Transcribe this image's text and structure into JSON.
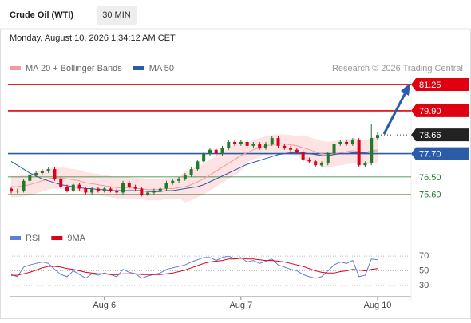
{
  "chart_data": {
    "type": "candlestick",
    "title": "Crude Oil (WTI)",
    "interval": "30 MIN",
    "subtitle": "Monday, August 10, 2026 1:34:12 AM CET",
    "source": "Research © 2026 Trading Central",
    "categories": [
      null,
      null,
      null,
      null,
      null,
      null,
      null,
      null,
      null,
      null,
      null,
      null,
      null,
      null,
      null,
      "Aug 6",
      null,
      null,
      null,
      null,
      null,
      null,
      null,
      null,
      null,
      null,
      null,
      null,
      null,
      null,
      null,
      null,
      null,
      null,
      null,
      null,
      null,
      "Aug 7",
      null,
      null,
      null,
      null,
      null,
      null,
      null,
      null,
      null,
      null,
      null,
      null,
      null,
      null,
      null,
      null,
      null,
      null,
      null,
      null,
      null,
      "Aug 10"
    ],
    "open": [
      75.9,
      75.75,
      75.8,
      76.3,
      76.6,
      76.7,
      76.8,
      76.9,
      76.4,
      76.0,
      75.8,
      76.1,
      75.9,
      75.7,
      75.9,
      75.8,
      75.9,
      75.8,
      75.7,
      76.2,
      76.0,
      75.9,
      75.6,
      75.7,
      75.8,
      75.9,
      76.2,
      76.3,
      76.4,
      76.6,
      76.9,
      77.3,
      77.7,
      77.9,
      77.7,
      78.0,
      78.3,
      78.2,
      78.3,
      78.1,
      78.2,
      78.0,
      78.2,
      78.5,
      78.1,
      78.0,
      77.9,
      77.8,
      77.4,
      77.3,
      77.1,
      77.2,
      77.7,
      78.2,
      78.3,
      78.2,
      78.4,
      77.1,
      77.2,
      78.5
    ],
    "high": [
      76.0,
      75.9,
      76.4,
      76.7,
      76.8,
      76.9,
      77.0,
      77.0,
      76.5,
      76.1,
      76.2,
      76.2,
      76.0,
      76.0,
      76.0,
      76.0,
      76.0,
      75.9,
      76.3,
      76.3,
      76.1,
      76.0,
      75.8,
      75.9,
      76.0,
      76.3,
      76.4,
      76.5,
      76.7,
      77.0,
      77.4,
      77.8,
      78.0,
      78.0,
      78.1,
      78.4,
      78.4,
      78.4,
      78.4,
      78.3,
      78.3,
      78.3,
      78.6,
      78.6,
      78.2,
      78.1,
      78.0,
      77.9,
      77.5,
      77.4,
      77.3,
      77.8,
      78.3,
      78.4,
      78.4,
      78.5,
      78.5,
      77.3,
      79.2,
      78.8
    ],
    "low": [
      75.65,
      75.65,
      75.7,
      76.2,
      76.5,
      76.6,
      76.7,
      76.3,
      75.9,
      75.7,
      75.7,
      75.8,
      75.6,
      75.6,
      75.7,
      75.7,
      75.7,
      75.6,
      75.6,
      75.9,
      75.8,
      75.5,
      75.5,
      75.6,
      75.7,
      75.8,
      76.1,
      76.2,
      76.3,
      76.5,
      76.8,
      77.2,
      77.6,
      77.6,
      77.6,
      77.9,
      78.1,
      78.1,
      78.0,
      78.0,
      77.9,
      77.9,
      78.1,
      78.0,
      77.9,
      77.8,
      77.7,
      77.3,
      77.2,
      77.0,
      77.0,
      77.1,
      77.6,
      78.1,
      78.1,
      78.1,
      77.0,
      77.0,
      77.1,
      78.4
    ],
    "close": [
      75.75,
      75.8,
      76.3,
      76.6,
      76.7,
      76.8,
      76.9,
      76.4,
      76.0,
      75.8,
      76.1,
      75.9,
      75.7,
      75.9,
      75.8,
      75.9,
      75.8,
      75.7,
      76.2,
      76.0,
      75.9,
      75.6,
      75.7,
      75.8,
      75.9,
      76.2,
      76.3,
      76.4,
      76.6,
      76.9,
      77.3,
      77.7,
      77.9,
      77.7,
      78.0,
      78.3,
      78.2,
      78.3,
      78.1,
      78.2,
      78.0,
      78.2,
      78.5,
      78.1,
      78.0,
      77.9,
      77.8,
      77.4,
      77.3,
      77.1,
      77.2,
      77.7,
      78.2,
      78.3,
      78.2,
      78.4,
      77.1,
      77.2,
      78.5,
      78.66
    ],
    "up_color": "#1f7a2a",
    "down_color": "#d9001b",
    "ylim": [
      74.2,
      81.7
    ],
    "overlays": [
      {
        "name": "MA 20 + Bollinger Bands",
        "color": "#f29b9b",
        "band_color": "#fde3e3",
        "values": [
          76.0,
          76.0,
          76.05,
          76.1,
          76.2,
          76.3,
          76.4,
          76.45,
          76.45,
          76.4,
          76.35,
          76.3,
          76.2,
          76.15,
          76.1,
          76.05,
          76.0,
          75.95,
          75.95,
          75.95,
          75.9,
          75.9,
          75.85,
          75.85,
          75.85,
          75.9,
          75.9,
          75.95,
          76.0,
          76.1,
          76.25,
          76.4,
          76.6,
          76.8,
          77.0,
          77.2,
          77.4,
          77.6,
          77.75,
          77.9,
          78.0,
          78.1,
          78.15,
          78.2,
          78.2,
          78.15,
          78.1,
          78.0,
          77.9,
          77.8,
          77.7,
          77.65,
          77.7,
          77.75,
          77.8,
          77.85,
          77.8,
          77.75,
          77.85,
          77.9
        ],
        "upper": [
          76.55,
          76.55,
          76.6,
          76.65,
          76.75,
          76.85,
          76.95,
          77.0,
          77.0,
          76.95,
          76.9,
          76.85,
          76.75,
          76.7,
          76.65,
          76.6,
          76.55,
          76.5,
          76.5,
          76.5,
          76.45,
          76.45,
          76.4,
          76.4,
          76.4,
          76.45,
          76.45,
          76.5,
          76.8,
          76.9,
          77.05,
          77.2,
          77.4,
          77.6,
          77.8,
          78.0,
          78.2,
          78.4,
          78.25,
          78.4,
          78.5,
          78.6,
          78.65,
          78.7,
          78.7,
          78.65,
          78.6,
          78.65,
          78.55,
          78.45,
          78.35,
          78.3,
          78.35,
          78.4,
          78.45,
          78.5,
          78.45,
          78.4,
          78.5,
          78.55
        ],
        "lower": [
          75.45,
          75.45,
          75.5,
          75.55,
          75.65,
          75.75,
          75.85,
          75.9,
          75.9,
          75.85,
          75.8,
          75.75,
          75.65,
          75.6,
          75.55,
          75.5,
          75.45,
          75.4,
          75.4,
          75.4,
          75.35,
          75.35,
          75.3,
          75.3,
          75.3,
          75.35,
          75.35,
          75.4,
          75.2,
          75.3,
          75.45,
          75.6,
          75.8,
          76.0,
          76.2,
          76.4,
          76.6,
          76.8,
          77.25,
          77.4,
          77.5,
          77.6,
          77.65,
          77.7,
          77.7,
          77.65,
          77.6,
          77.35,
          77.25,
          77.15,
          77.05,
          77.0,
          77.05,
          77.1,
          77.15,
          77.2,
          77.15,
          77.1,
          77.2,
          77.25
        ]
      },
      {
        "name": "MA 50",
        "color": "#2a5caa",
        "values": [
          77.3,
          77.1,
          76.9,
          76.7,
          76.55,
          76.4,
          76.3,
          76.2,
          76.1,
          76.05,
          76.0,
          75.95,
          75.9,
          75.9,
          75.85,
          75.85,
          75.8,
          75.8,
          75.8,
          75.8,
          75.8,
          75.8,
          75.75,
          75.75,
          75.75,
          75.8,
          75.8,
          75.85,
          75.9,
          75.95,
          76.0,
          76.1,
          76.25,
          76.4,
          76.55,
          76.7,
          76.85,
          77.0,
          77.15,
          77.25,
          77.35,
          77.45,
          77.55,
          77.65,
          77.7,
          77.75,
          77.75,
          77.75,
          77.7,
          77.65,
          77.6,
          77.6,
          77.65,
          77.7,
          77.7,
          77.75,
          77.75,
          77.75,
          77.8,
          77.8
        ]
      }
    ],
    "levels": [
      {
        "value": 81.25,
        "label": "81.25",
        "color": "#e0000f",
        "boxed": true
      },
      {
        "value": 79.9,
        "label": "79.90",
        "color": "#e0000f",
        "boxed": true
      },
      {
        "value": 77.7,
        "label": "77.70",
        "color": "#2a5caa",
        "boxed": true
      },
      {
        "value": 76.5,
        "label": "76.50",
        "color": "#1f7a2a",
        "boxed": false
      },
      {
        "value": 75.6,
        "label": "75.60",
        "color": "#1f7a2a",
        "boxed": false
      }
    ],
    "last_price": {
      "value": 78.66,
      "label": "78.66",
      "color": "#222222"
    },
    "indicator": {
      "ylim": [
        17,
        82
      ],
      "yticks": [
        30,
        50,
        70
      ],
      "series": [
        {
          "name": "RSI",
          "color": "#5b7fdb",
          "values": [
            45,
            42,
            55,
            58,
            60,
            62,
            60,
            52,
            45,
            42,
            50,
            45,
            40,
            46,
            44,
            47,
            45,
            42,
            52,
            48,
            46,
            40,
            43,
            45,
            47,
            52,
            54,
            56,
            58,
            62,
            65,
            68,
            68,
            64,
            68,
            70,
            66,
            68,
            62,
            64,
            60,
            63,
            66,
            58,
            55,
            52,
            50,
            45,
            42,
            40,
            42,
            50,
            58,
            62,
            60,
            64,
            42,
            44,
            66,
            65
          ]
        },
        {
          "name": "9MA",
          "color": "#d9001b",
          "values": [
            44,
            44,
            46,
            48,
            51,
            54,
            56,
            56,
            55,
            53,
            52,
            50,
            48,
            47,
            46,
            46,
            45,
            45,
            46,
            46,
            46,
            45,
            45,
            45,
            45,
            46,
            47,
            49,
            51,
            54,
            57,
            60,
            62,
            63,
            64,
            66,
            66,
            67,
            66,
            66,
            65,
            64,
            64,
            63,
            62,
            60,
            58,
            56,
            53,
            50,
            48,
            47,
            47,
            49,
            50,
            52,
            51,
            50,
            52,
            53
          ]
        }
      ]
    }
  }
}
